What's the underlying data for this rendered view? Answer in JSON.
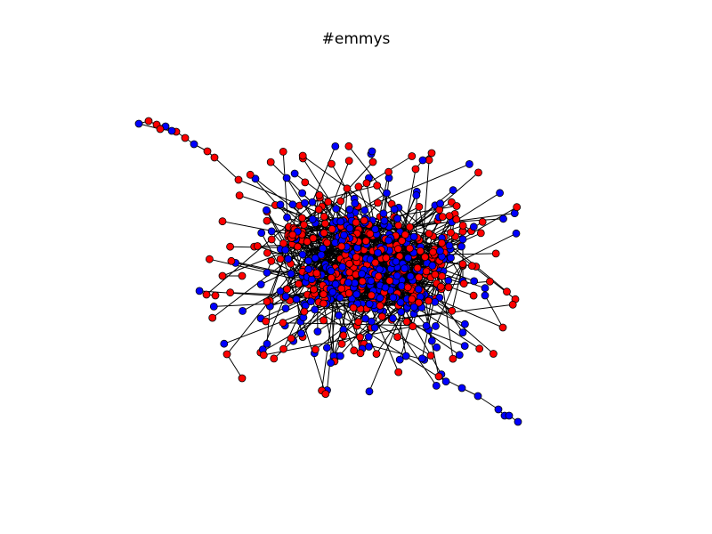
{
  "title": "#emmys",
  "graph": {
    "layout": "force-directed",
    "node_colors": {
      "group_a": "#ff0000",
      "group_b": "#0000ff"
    },
    "edge_color": "#000000",
    "node_outline_color": "#000000",
    "background": "#ffffff",
    "axes_visible": false
  }
}
